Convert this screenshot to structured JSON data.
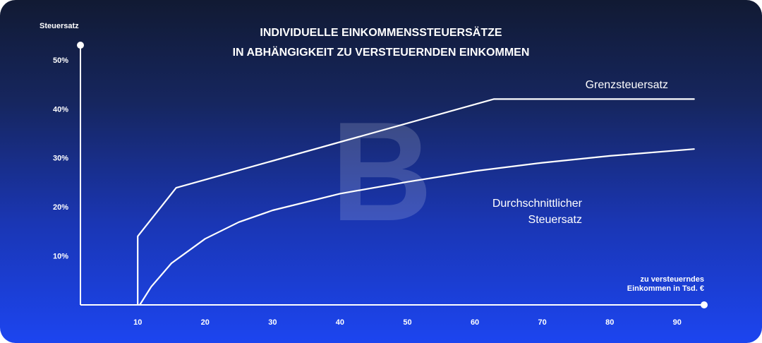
{
  "chart_data": {
    "type": "line",
    "title": [
      "INDIVIDUELLE EINKOMMENSSTEUERSÄTZE",
      "IN ABHÄNGIGKEIT ZU VERSTEUERNDEN EINKOMMEN"
    ],
    "ylabel": "Steuersatz",
    "xlabel": [
      "zu versteuerndes",
      "Einkommen in Tsd. €"
    ],
    "watermark": "B",
    "xlim": [
      1.5,
      94
    ],
    "ylim": [
      0,
      53
    ],
    "x_ticks": [
      10,
      20,
      30,
      40,
      50,
      60,
      70,
      80,
      90
    ],
    "y_ticks": [
      {
        "value": 10,
        "label": "10%"
      },
      {
        "value": 20,
        "label": "20%"
      },
      {
        "value": 30,
        "label": "30%"
      },
      {
        "value": 40,
        "label": "40%"
      },
      {
        "value": 50,
        "label": "50%"
      }
    ],
    "grid": false,
    "series": [
      {
        "name": [
          "Grenzsteuersatz"
        ],
        "x": [
          10,
          10,
          15.7,
          62.8,
          92.5
        ],
        "y": [
          0,
          14,
          23.9,
          42,
          42
        ]
      },
      {
        "name": [
          "Durchschnittlicher",
          "Steuersatz"
        ],
        "x": [
          10.3,
          12,
          15,
          20,
          25,
          30,
          40,
          50,
          60,
          70,
          80,
          92.5
        ],
        "y": [
          0,
          3.7,
          8.5,
          13.5,
          16.9,
          19.3,
          22.7,
          25.1,
          27.3,
          29.0,
          30.4,
          31.8
        ]
      }
    ],
    "colors": {
      "line": "#ffffff",
      "background_top": "#111a33",
      "background_bottom": "#1c45f0"
    }
  }
}
